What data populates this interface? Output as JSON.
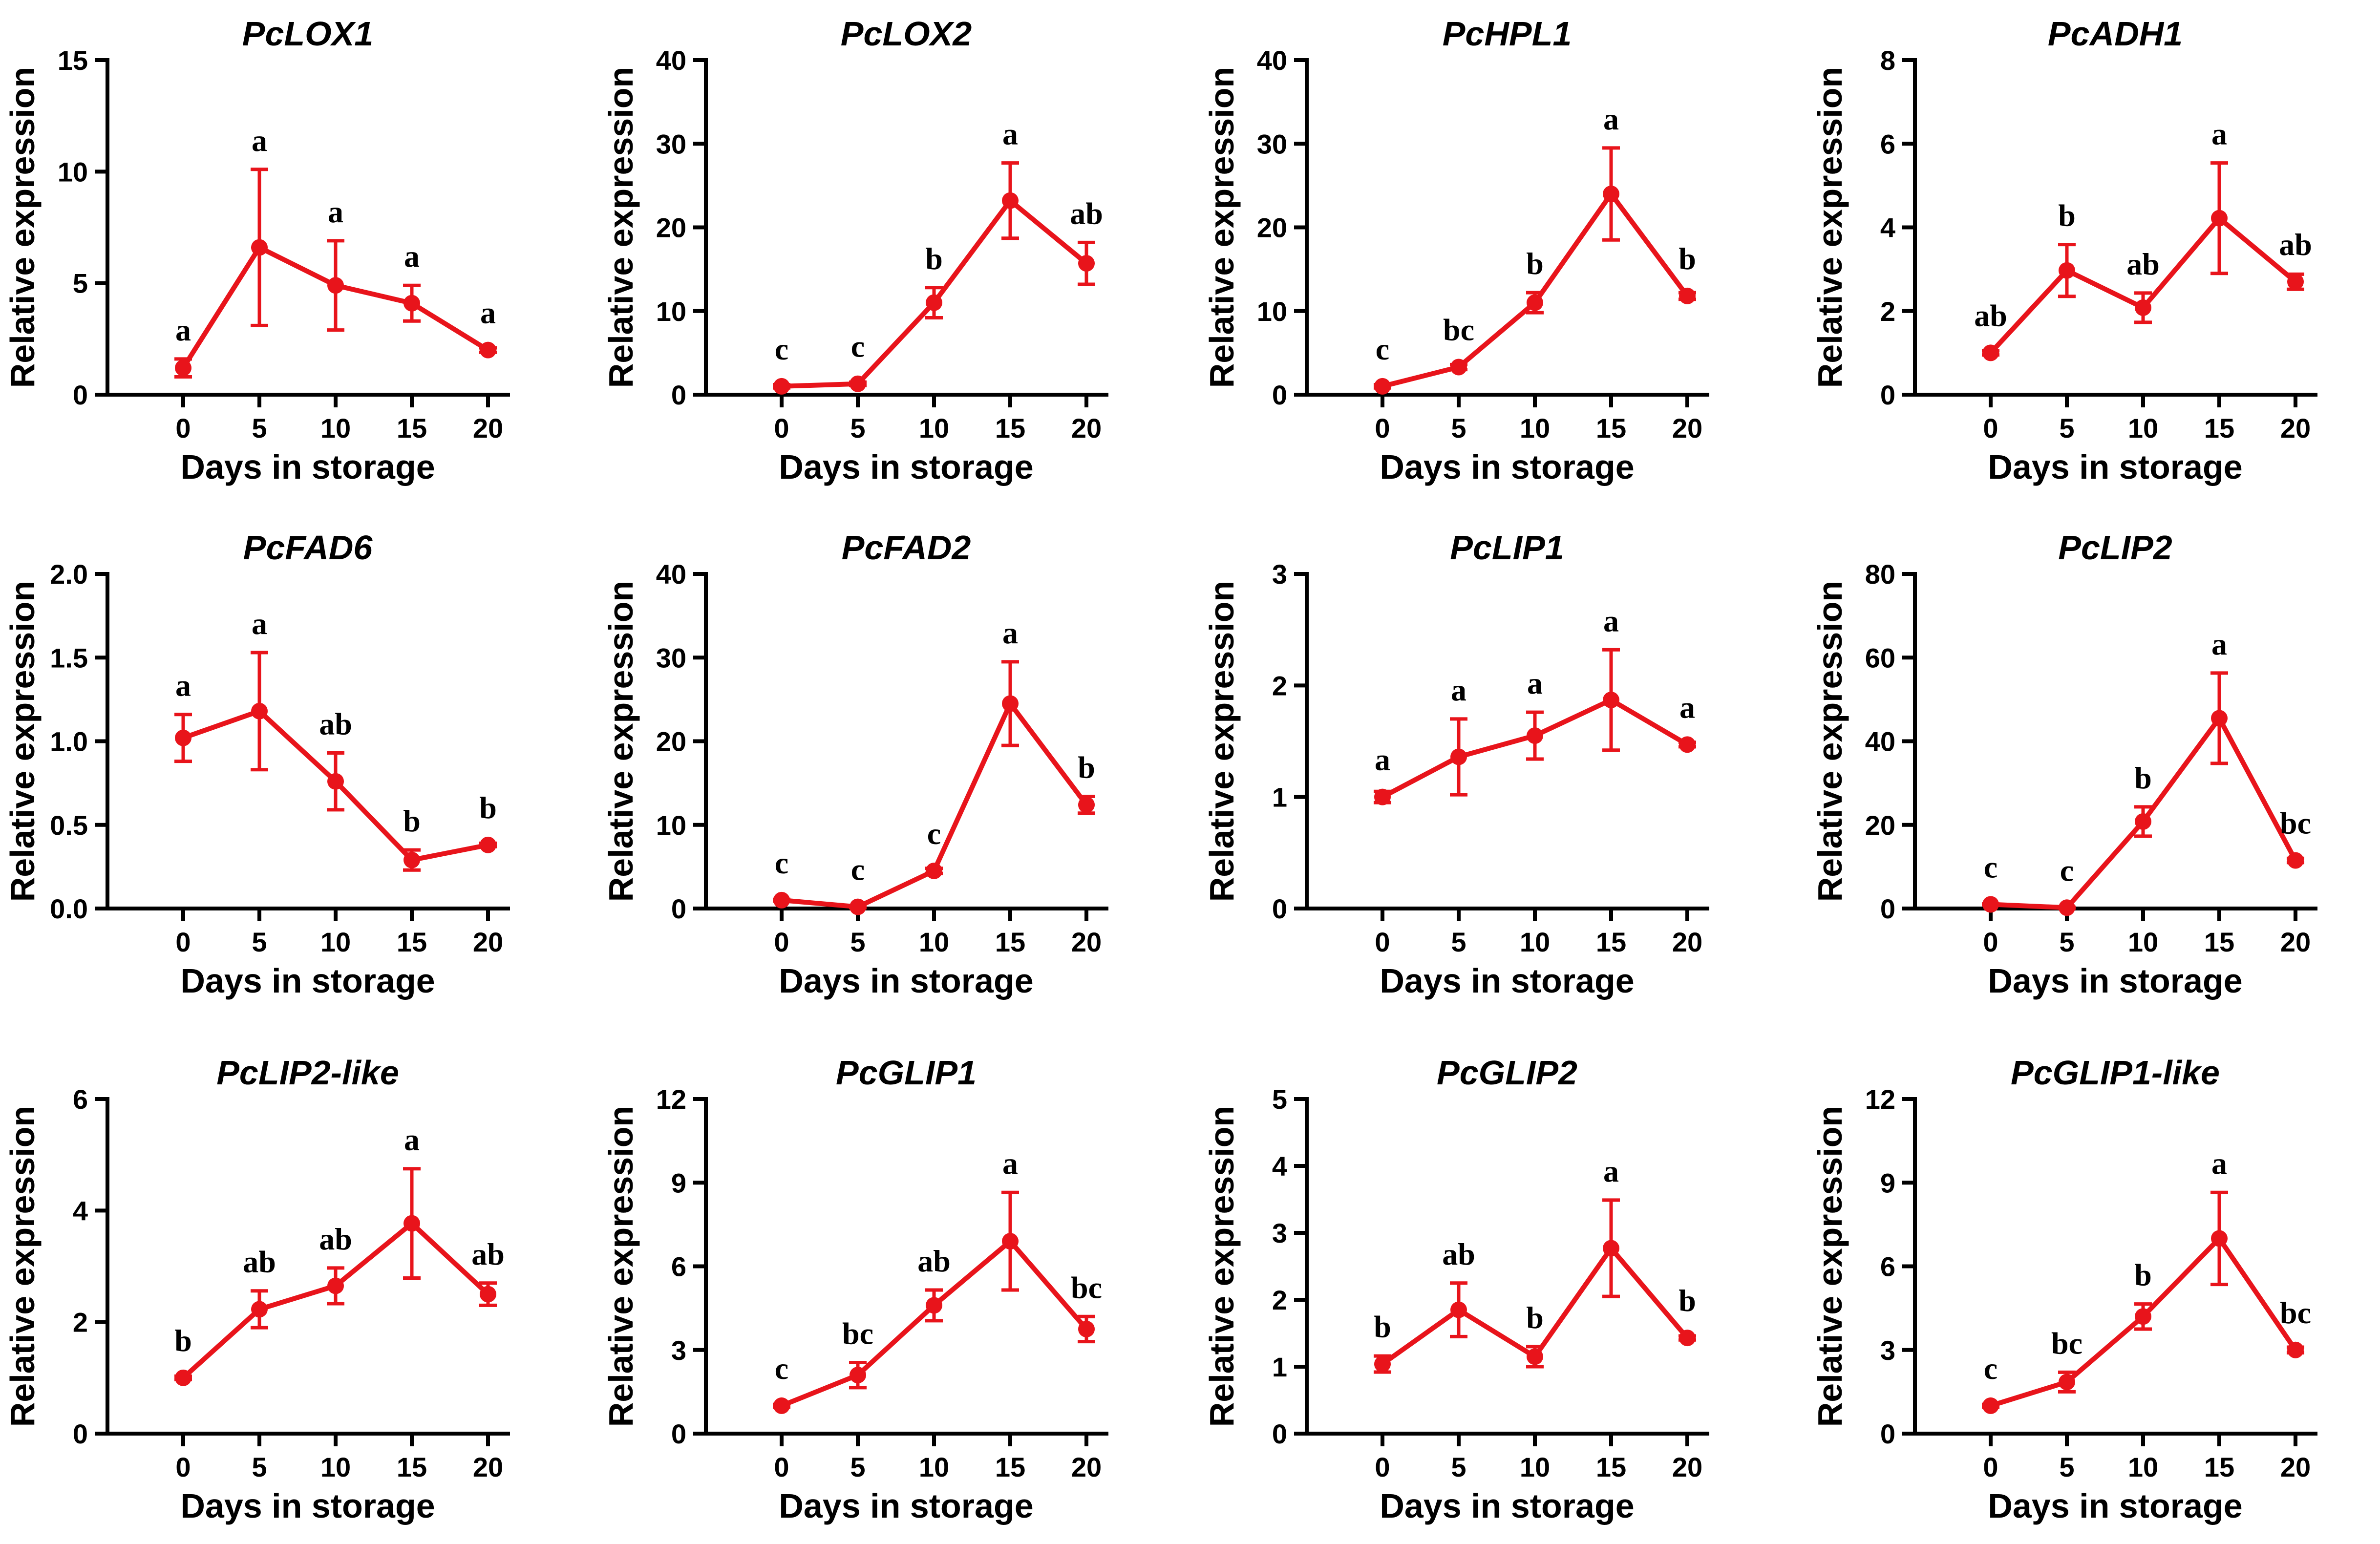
{
  "figure": {
    "color": "#e8141b"
  },
  "chart_data": [
    {
      "type": "line",
      "title": "PcLOX1",
      "xlabel": "Days in storage",
      "ylabel": "Relative expression",
      "x": [
        0,
        5,
        10,
        15,
        20
      ],
      "ylim": [
        0,
        15
      ],
      "yticks": [
        0,
        5,
        10,
        15
      ],
      "values": [
        1.2,
        6.6,
        4.9,
        4.1,
        2.0
      ],
      "errors": [
        0.4,
        3.5,
        2.0,
        0.8,
        0.1
      ],
      "letters": [
        "a",
        "a",
        "a",
        "a",
        "a"
      ]
    },
    {
      "type": "line",
      "title": "PcLOX2",
      "xlabel": "Days in storage",
      "ylabel": "Relative expression",
      "x": [
        0,
        5,
        10,
        15,
        20
      ],
      "ylim": [
        0,
        40
      ],
      "yticks": [
        0,
        10,
        20,
        30,
        40
      ],
      "values": [
        1.0,
        1.3,
        11.0,
        23.2,
        15.7
      ],
      "errors": [
        0.2,
        0.2,
        1.8,
        4.5,
        2.5
      ],
      "letters": [
        "c",
        "c",
        "b",
        "a",
        "ab"
      ]
    },
    {
      "type": "line",
      "title": "PcHPL1",
      "xlabel": "Days in storage",
      "ylabel": "Relative expression",
      "x": [
        0,
        5,
        10,
        15,
        20
      ],
      "ylim": [
        0,
        40
      ],
      "yticks": [
        0,
        10,
        20,
        30,
        40
      ],
      "values": [
        1.0,
        3.3,
        11.0,
        24.0,
        11.8
      ],
      "errors": [
        0.2,
        0.3,
        1.2,
        5.5,
        0.4
      ],
      "letters": [
        "c",
        "bc",
        "b",
        "a",
        "b"
      ]
    },
    {
      "type": "line",
      "title": "PcADH1",
      "xlabel": "Days in storage",
      "ylabel": "Relative expression",
      "x": [
        0,
        5,
        10,
        15,
        20
      ],
      "ylim": [
        0,
        8
      ],
      "yticks": [
        0,
        2,
        4,
        6,
        8
      ],
      "values": [
        1.0,
        2.97,
        2.08,
        4.22,
        2.7
      ],
      "errors": [
        0.05,
        0.62,
        0.35,
        1.32,
        0.18
      ],
      "letters": [
        "ab",
        "b",
        "ab",
        "a",
        "ab"
      ]
    },
    {
      "type": "line",
      "title": "PcFAD6",
      "xlabel": "Days in storage",
      "ylabel": "Relative expression",
      "x": [
        0,
        5,
        10,
        15,
        20
      ],
      "ylim": [
        0,
        2.0
      ],
      "yticks": [
        0.0,
        0.5,
        1.0,
        1.5,
        2.0
      ],
      "values": [
        1.02,
        1.18,
        0.76,
        0.29,
        0.38
      ],
      "errors": [
        0.14,
        0.35,
        0.17,
        0.06,
        0.01
      ],
      "letters": [
        "a",
        "a",
        "ab",
        "b",
        "b"
      ]
    },
    {
      "type": "line",
      "title": "PcFAD2",
      "xlabel": "Days in storage",
      "ylabel": "Relative expression",
      "x": [
        0,
        5,
        10,
        15,
        20
      ],
      "ylim": [
        0,
        40
      ],
      "yticks": [
        0,
        10,
        20,
        30,
        40
      ],
      "values": [
        1.0,
        0.2,
        4.5,
        24.5,
        12.4
      ],
      "errors": [
        0.1,
        0.1,
        0.3,
        5.0,
        1.0
      ],
      "letters": [
        "c",
        "c",
        "c",
        "a",
        "b"
      ]
    },
    {
      "type": "line",
      "title": "PcLIP1",
      "xlabel": "Days in storage",
      "ylabel": "Relative expression",
      "x": [
        0,
        5,
        10,
        15,
        20
      ],
      "ylim": [
        0,
        3
      ],
      "yticks": [
        0,
        1,
        2,
        3
      ],
      "values": [
        1.0,
        1.36,
        1.55,
        1.87,
        1.47
      ],
      "errors": [
        0.05,
        0.34,
        0.21,
        0.45,
        0.02
      ],
      "letters": [
        "a",
        "a",
        "a",
        "a",
        "a"
      ]
    },
    {
      "type": "line",
      "title": "PcLIP2",
      "xlabel": "Days in storage",
      "ylabel": "Relative expression",
      "x": [
        0,
        5,
        10,
        15,
        20
      ],
      "ylim": [
        0,
        80
      ],
      "yticks": [
        0,
        20,
        40,
        60,
        80
      ],
      "values": [
        1.0,
        0.2,
        20.8,
        45.5,
        11.5
      ],
      "errors": [
        0.1,
        0.1,
        3.5,
        10.8,
        0.5
      ],
      "letters": [
        "c",
        "c",
        "b",
        "a",
        "bc"
      ]
    },
    {
      "type": "line",
      "title": "PcLIP2-like",
      "xlabel": "Days in storage",
      "ylabel": "Relative expression",
      "x": [
        0,
        5,
        10,
        15,
        20
      ],
      "ylim": [
        0,
        6
      ],
      "yticks": [
        0,
        2,
        4,
        6
      ],
      "values": [
        1.0,
        2.23,
        2.65,
        3.77,
        2.5
      ],
      "errors": [
        0.03,
        0.33,
        0.32,
        0.98,
        0.2
      ],
      "letters": [
        "b",
        "ab",
        "ab",
        "a",
        "ab"
      ]
    },
    {
      "type": "line",
      "title": "PcGLIP1",
      "xlabel": "Days in storage",
      "ylabel": "Relative expression",
      "x": [
        0,
        5,
        10,
        15,
        20
      ],
      "ylim": [
        0,
        12
      ],
      "yticks": [
        0,
        3,
        6,
        9,
        12
      ],
      "values": [
        1.0,
        2.1,
        4.6,
        6.9,
        3.75
      ],
      "errors": [
        0.05,
        0.45,
        0.55,
        1.75,
        0.45
      ],
      "letters": [
        "c",
        "bc",
        "ab",
        "a",
        "bc"
      ]
    },
    {
      "type": "line",
      "title": "PcGLIP2",
      "xlabel": "Days in storage",
      "ylabel": "Relative expression",
      "x": [
        0,
        5,
        10,
        15,
        20
      ],
      "ylim": [
        0,
        5
      ],
      "yticks": [
        0,
        1,
        2,
        3,
        4,
        5
      ],
      "values": [
        1.04,
        1.85,
        1.15,
        2.77,
        1.43
      ],
      "errors": [
        0.12,
        0.4,
        0.15,
        0.72,
        0.03
      ],
      "letters": [
        "b",
        "ab",
        "b",
        "a",
        "b"
      ]
    },
    {
      "type": "line",
      "title": "PcGLIP1-like",
      "xlabel": "Days in storage",
      "ylabel": "Relative expression",
      "x": [
        0,
        5,
        10,
        15,
        20
      ],
      "ylim": [
        0,
        12
      ],
      "yticks": [
        0,
        3,
        6,
        9,
        12
      ],
      "values": [
        1.0,
        1.85,
        4.2,
        7.0,
        3.0
      ],
      "errors": [
        0.05,
        0.35,
        0.45,
        1.65,
        0.1
      ],
      "letters": [
        "c",
        "bc",
        "b",
        "a",
        "bc"
      ]
    }
  ]
}
